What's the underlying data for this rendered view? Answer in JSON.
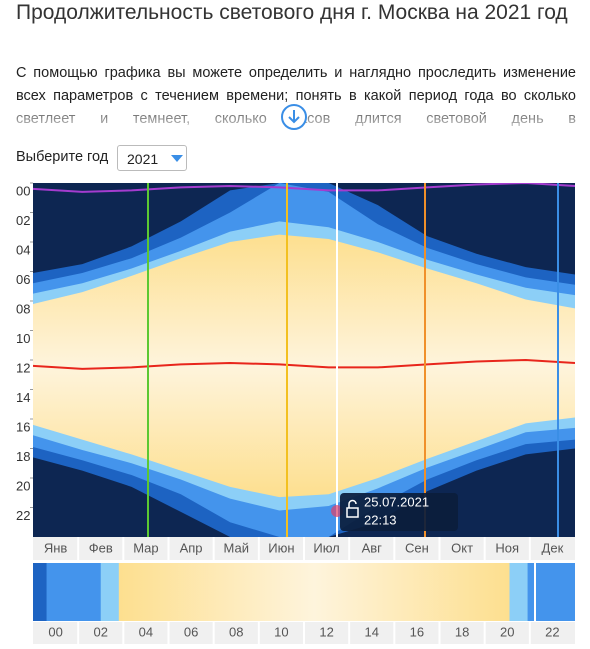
{
  "header": {
    "title": "Продолжительность светового дня г. Москва на 2021 год",
    "description": "С помощью графика вы можете определить и наглядно проследить изменение всех параметров с течением времени; понять в какой период года во сколько светлеет и темнеет, сколько часов длится световой день в"
  },
  "year_select": {
    "label": "Выберите год",
    "value": "2021"
  },
  "chart_data": {
    "type": "daylight",
    "categories": [
      "Янв",
      "Фев",
      "Мар",
      "Апр",
      "Май",
      "Июн",
      "Июл",
      "Авг",
      "Сен",
      "Окт",
      "Ноя",
      "Дек"
    ],
    "ylim": [
      0,
      24
    ],
    "yticks": [
      {
        "value": 0,
        "label": "00"
      },
      {
        "value": 2,
        "label": "02"
      },
      {
        "value": 4,
        "label": "04"
      },
      {
        "value": 6,
        "label": "06"
      },
      {
        "value": 8,
        "label": "08"
      },
      10,
      12,
      14,
      16,
      18,
      20,
      22
    ],
    "night_color": "#0d2652",
    "bands": [
      {
        "color": "#1d63c2",
        "start": [
          6.1,
          5.5,
          4.3,
          2.6,
          0.5,
          0,
          0,
          1.5,
          3.6,
          4.8,
          5.7,
          6.2
        ],
        "end": [
          18.6,
          19.5,
          20.6,
          22.3,
          24,
          24,
          24,
          23,
          20.9,
          19.5,
          18.4,
          18
        ]
      },
      {
        "color": "#4494ec",
        "start": [
          6.8,
          6.1,
          5.1,
          3.7,
          2,
          0,
          0.6,
          2.8,
          4.4,
          5.5,
          6.4,
          6.9
        ],
        "end": [
          17.9,
          18.8,
          19.8,
          21.1,
          23,
          24,
          24,
          21.9,
          20.1,
          18.8,
          17.7,
          17.4
        ]
      },
      {
        "color": "#8ccff7",
        "start": [
          7.5,
          6.8,
          5.8,
          4.6,
          3.3,
          2.6,
          3,
          4,
          5.2,
          6.2,
          7.1,
          7.6
        ],
        "end": [
          17.1,
          18.1,
          19,
          20.1,
          21.4,
          22.2,
          21.9,
          20.7,
          19.3,
          18.1,
          16.9,
          16.6
        ]
      },
      {
        "color": "#fddf8f",
        "start": [
          8.2,
          7.4,
          6.3,
          5.1,
          4,
          3.5,
          3.8,
          4.7,
          5.8,
          6.8,
          7.9,
          8.5
        ],
        "end": [
          16.4,
          17.4,
          18.4,
          19.5,
          20.6,
          21.3,
          21.1,
          20,
          18.7,
          17.5,
          16.3,
          15.9
        ]
      }
    ],
    "lines": [
      {
        "color": "#e8261c",
        "values": [
          12.4,
          12.6,
          12.5,
          12.3,
          12.2,
          12.3,
          12.5,
          12.5,
          12.3,
          12.1,
          12,
          12.2
        ]
      },
      {
        "color": "#a43ccf",
        "values": [
          0.4,
          0.6,
          0.5,
          0.3,
          0.2,
          0.3,
          0.5,
          0.5,
          0.3,
          0.1,
          0,
          0.2
        ]
      }
    ],
    "tooltip": {
      "date": "25.07.2021",
      "time": "22:13"
    }
  },
  "hour_strip": {
    "labels": [
      "00",
      "02",
      "04",
      "06",
      "08",
      "10",
      "12",
      "14",
      "16",
      "18",
      "20",
      "22"
    ]
  }
}
